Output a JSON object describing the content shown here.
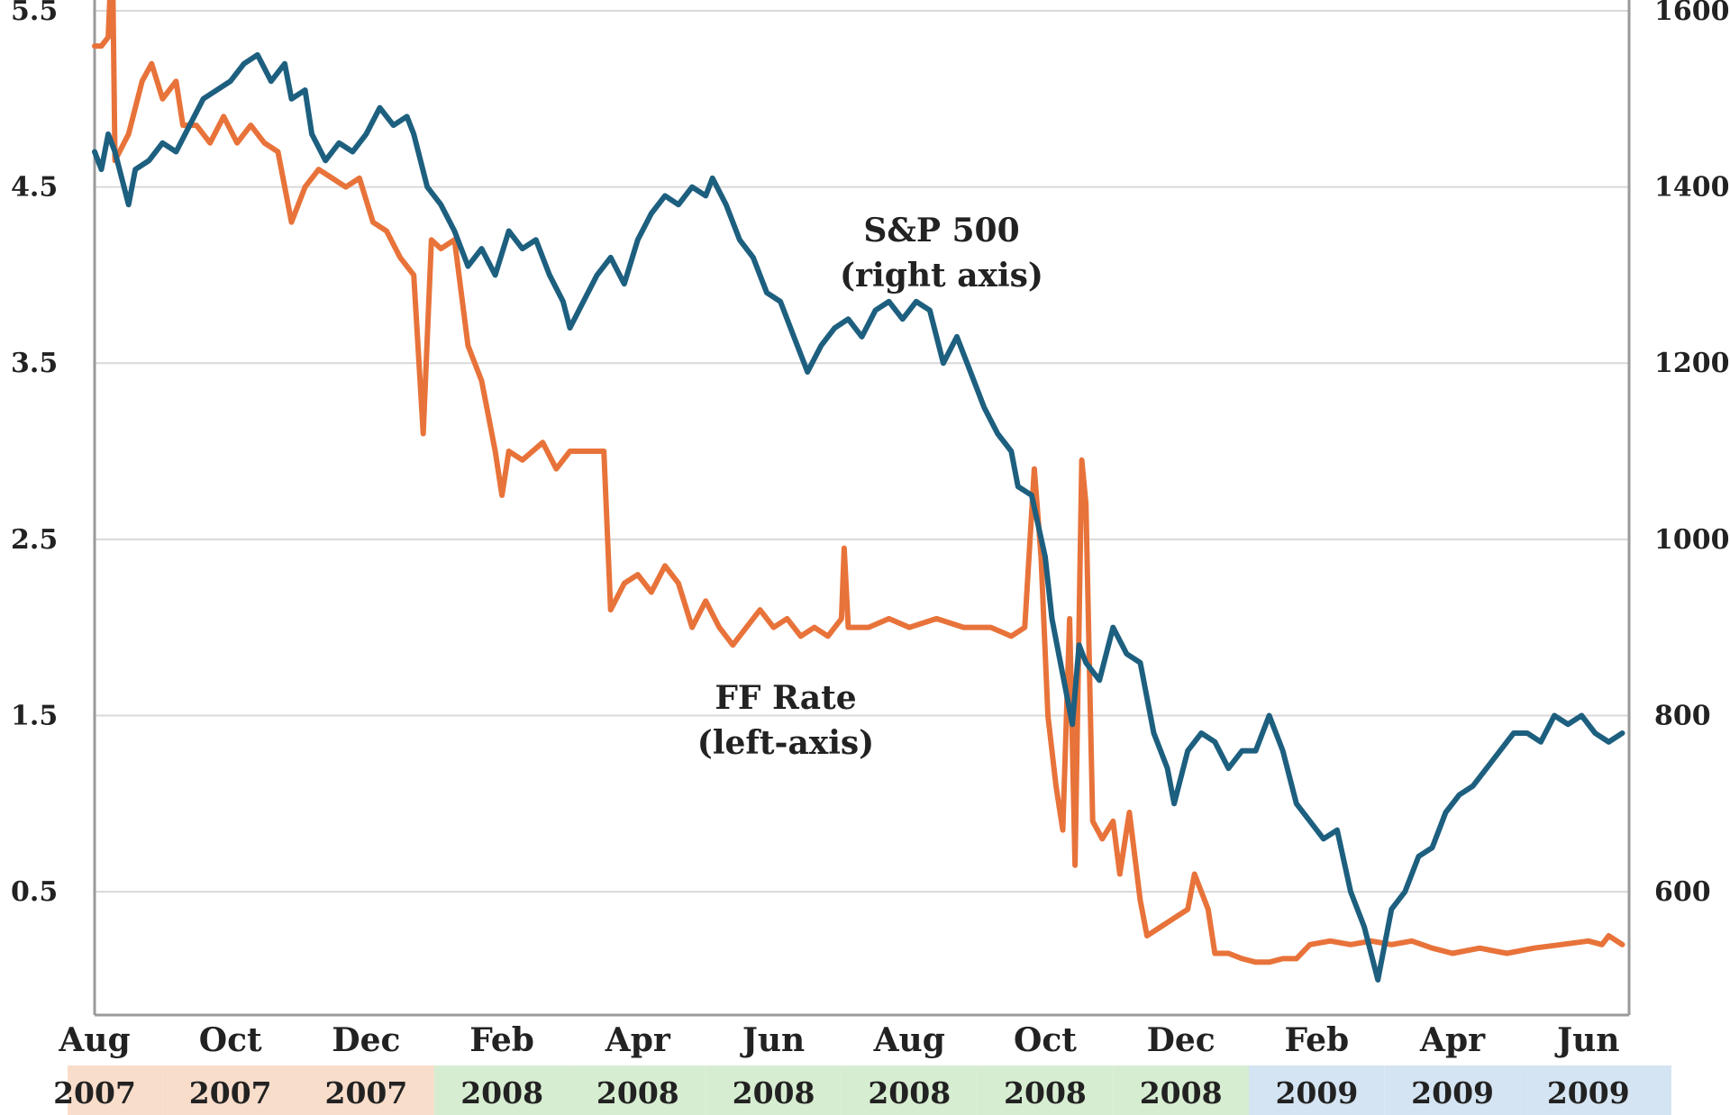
{
  "chart_data": {
    "type": "line",
    "title": "",
    "colors": {
      "ff_rate": "#e8733a",
      "sp500": "#1d5f7f",
      "grid": "#d9d9d9",
      "axis": "#9a9a9a",
      "band_2007": "#f9ddcb",
      "band_2008": "#d7edd1",
      "band_2009": "#d4e4f2"
    },
    "x_axis": {
      "months": [
        "Aug",
        "Oct",
        "Dec",
        "Feb",
        "Apr",
        "Jun",
        "Aug",
        "Oct",
        "Dec",
        "Feb",
        "Apr",
        "Jun"
      ],
      "years": [
        "2007",
        "2007",
        "2007",
        "2008",
        "2008",
        "2008",
        "2008",
        "2008",
        "2008",
        "2009",
        "2009",
        "2009"
      ],
      "range": [
        0,
        11.3
      ]
    },
    "left_axis": {
      "label": "FF Rate",
      "ticks": [
        "5.5",
        "4.5",
        "3.5",
        "2.5",
        "1.5",
        "0.5"
      ],
      "range": [
        -0.2,
        5.5
      ]
    },
    "right_axis": {
      "label": "S&P 500",
      "ticks": [
        "1600",
        "1400",
        "1200",
        "1000",
        "800",
        "600"
      ],
      "range": [
        460,
        1600
      ]
    },
    "annotations": {
      "sp500": [
        "S&P 500",
        "(right axis)"
      ],
      "ff_rate": [
        "FF Rate",
        "(left-axis)"
      ]
    },
    "series": [
      {
        "name": "FF Rate",
        "axis": "left",
        "points": [
          [
            0.0,
            5.3
          ],
          [
            0.05,
            5.3
          ],
          [
            0.1,
            5.35
          ],
          [
            0.13,
            5.9
          ],
          [
            0.15,
            4.65
          ],
          [
            0.25,
            4.8
          ],
          [
            0.35,
            5.1
          ],
          [
            0.42,
            5.2
          ],
          [
            0.5,
            5.0
          ],
          [
            0.6,
            5.1
          ],
          [
            0.65,
            4.85
          ],
          [
            0.75,
            4.85
          ],
          [
            0.85,
            4.75
          ],
          [
            0.95,
            4.9
          ],
          [
            1.05,
            4.75
          ],
          [
            1.15,
            4.85
          ],
          [
            1.25,
            4.75
          ],
          [
            1.35,
            4.7
          ],
          [
            1.45,
            4.3
          ],
          [
            1.55,
            4.5
          ],
          [
            1.65,
            4.6
          ],
          [
            1.75,
            4.55
          ],
          [
            1.85,
            4.5
          ],
          [
            1.95,
            4.55
          ],
          [
            2.05,
            4.3
          ],
          [
            2.15,
            4.25
          ],
          [
            2.25,
            4.1
          ],
          [
            2.35,
            4.0
          ],
          [
            2.42,
            3.1
          ],
          [
            2.48,
            4.2
          ],
          [
            2.55,
            4.15
          ],
          [
            2.65,
            4.2
          ],
          [
            2.75,
            3.6
          ],
          [
            2.85,
            3.4
          ],
          [
            2.9,
            3.2
          ],
          [
            2.95,
            3.0
          ],
          [
            3.0,
            2.75
          ],
          [
            3.05,
            3.0
          ],
          [
            3.15,
            2.95
          ],
          [
            3.3,
            3.05
          ],
          [
            3.4,
            2.9
          ],
          [
            3.5,
            3.0
          ],
          [
            3.6,
            3.0
          ],
          [
            3.75,
            3.0
          ],
          [
            3.8,
            2.1
          ],
          [
            3.9,
            2.25
          ],
          [
            4.0,
            2.3
          ],
          [
            4.1,
            2.2
          ],
          [
            4.2,
            2.35
          ],
          [
            4.3,
            2.25
          ],
          [
            4.4,
            2.0
          ],
          [
            4.5,
            2.15
          ],
          [
            4.6,
            2.0
          ],
          [
            4.7,
            1.9
          ],
          [
            4.8,
            2.0
          ],
          [
            4.9,
            2.1
          ],
          [
            5.0,
            2.0
          ],
          [
            5.1,
            2.05
          ],
          [
            5.2,
            1.95
          ],
          [
            5.3,
            2.0
          ],
          [
            5.4,
            1.95
          ],
          [
            5.5,
            2.05
          ],
          [
            5.52,
            2.45
          ],
          [
            5.55,
            2.0
          ],
          [
            5.7,
            2.0
          ],
          [
            5.85,
            2.05
          ],
          [
            6.0,
            2.0
          ],
          [
            6.2,
            2.05
          ],
          [
            6.4,
            2.0
          ],
          [
            6.6,
            2.0
          ],
          [
            6.75,
            1.95
          ],
          [
            6.85,
            2.0
          ],
          [
            6.92,
            2.9
          ],
          [
            6.97,
            2.4
          ],
          [
            7.02,
            1.5
          ],
          [
            7.08,
            1.1
          ],
          [
            7.13,
            0.85
          ],
          [
            7.18,
            2.05
          ],
          [
            7.22,
            0.65
          ],
          [
            7.27,
            2.95
          ],
          [
            7.3,
            2.7
          ],
          [
            7.35,
            0.9
          ],
          [
            7.42,
            0.8
          ],
          [
            7.5,
            0.9
          ],
          [
            7.55,
            0.6
          ],
          [
            7.62,
            0.95
          ],
          [
            7.7,
            0.45
          ],
          [
            7.75,
            0.25
          ],
          [
            7.85,
            0.3
          ],
          [
            7.95,
            0.35
          ],
          [
            8.05,
            0.4
          ],
          [
            8.1,
            0.6
          ],
          [
            8.2,
            0.4
          ],
          [
            8.25,
            0.15
          ],
          [
            8.35,
            0.15
          ],
          [
            8.45,
            0.12
          ],
          [
            8.55,
            0.1
          ],
          [
            8.65,
            0.1
          ],
          [
            8.75,
            0.12
          ],
          [
            8.85,
            0.12
          ],
          [
            8.95,
            0.2
          ],
          [
            9.1,
            0.22
          ],
          [
            9.25,
            0.2
          ],
          [
            9.4,
            0.22
          ],
          [
            9.55,
            0.2
          ],
          [
            9.7,
            0.22
          ],
          [
            9.85,
            0.18
          ],
          [
            10.0,
            0.15
          ],
          [
            10.2,
            0.18
          ],
          [
            10.4,
            0.15
          ],
          [
            10.6,
            0.18
          ],
          [
            10.8,
            0.2
          ],
          [
            11.0,
            0.22
          ],
          [
            11.1,
            0.2
          ],
          [
            11.15,
            0.25
          ],
          [
            11.25,
            0.2
          ]
        ]
      },
      {
        "name": "S&P 500",
        "axis": "right",
        "points": [
          [
            0.0,
            1440
          ],
          [
            0.05,
            1420
          ],
          [
            0.1,
            1460
          ],
          [
            0.15,
            1440
          ],
          [
            0.25,
            1380
          ],
          [
            0.3,
            1420
          ],
          [
            0.4,
            1430
          ],
          [
            0.5,
            1450
          ],
          [
            0.6,
            1440
          ],
          [
            0.7,
            1470
          ],
          [
            0.8,
            1500
          ],
          [
            0.9,
            1510
          ],
          [
            1.0,
            1520
          ],
          [
            1.1,
            1540
          ],
          [
            1.2,
            1550
          ],
          [
            1.3,
            1520
          ],
          [
            1.4,
            1540
          ],
          [
            1.45,
            1500
          ],
          [
            1.55,
            1510
          ],
          [
            1.6,
            1460
          ],
          [
            1.7,
            1430
          ],
          [
            1.8,
            1450
          ],
          [
            1.9,
            1440
          ],
          [
            2.0,
            1460
          ],
          [
            2.1,
            1490
          ],
          [
            2.2,
            1470
          ],
          [
            2.3,
            1480
          ],
          [
            2.35,
            1460
          ],
          [
            2.45,
            1400
          ],
          [
            2.55,
            1380
          ],
          [
            2.65,
            1350
          ],
          [
            2.75,
            1310
          ],
          [
            2.85,
            1330
          ],
          [
            2.95,
            1300
          ],
          [
            3.05,
            1350
          ],
          [
            3.15,
            1330
          ],
          [
            3.25,
            1340
          ],
          [
            3.35,
            1300
          ],
          [
            3.45,
            1270
          ],
          [
            3.5,
            1240
          ],
          [
            3.6,
            1270
          ],
          [
            3.7,
            1300
          ],
          [
            3.8,
            1320
          ],
          [
            3.9,
            1290
          ],
          [
            4.0,
            1340
          ],
          [
            4.1,
            1370
          ],
          [
            4.2,
            1390
          ],
          [
            4.3,
            1380
          ],
          [
            4.4,
            1400
          ],
          [
            4.5,
            1390
          ],
          [
            4.55,
            1410
          ],
          [
            4.65,
            1380
          ],
          [
            4.75,
            1340
          ],
          [
            4.85,
            1320
          ],
          [
            4.95,
            1280
          ],
          [
            5.05,
            1270
          ],
          [
            5.15,
            1230
          ],
          [
            5.25,
            1190
          ],
          [
            5.35,
            1220
          ],
          [
            5.45,
            1240
          ],
          [
            5.55,
            1250
          ],
          [
            5.65,
            1230
          ],
          [
            5.75,
            1260
          ],
          [
            5.85,
            1270
          ],
          [
            5.95,
            1250
          ],
          [
            6.05,
            1270
          ],
          [
            6.15,
            1260
          ],
          [
            6.25,
            1200
          ],
          [
            6.35,
            1230
          ],
          [
            6.45,
            1190
          ],
          [
            6.55,
            1150
          ],
          [
            6.65,
            1120
          ],
          [
            6.75,
            1100
          ],
          [
            6.8,
            1060
          ],
          [
            6.9,
            1050
          ],
          [
            7.0,
            980
          ],
          [
            7.05,
            910
          ],
          [
            7.1,
            870
          ],
          [
            7.15,
            830
          ],
          [
            7.2,
            790
          ],
          [
            7.25,
            880
          ],
          [
            7.3,
            860
          ],
          [
            7.4,
            840
          ],
          [
            7.5,
            900
          ],
          [
            7.6,
            870
          ],
          [
            7.7,
            860
          ],
          [
            7.8,
            780
          ],
          [
            7.9,
            740
          ],
          [
            7.95,
            700
          ],
          [
            8.05,
            760
          ],
          [
            8.15,
            780
          ],
          [
            8.25,
            770
          ],
          [
            8.35,
            740
          ],
          [
            8.45,
            760
          ],
          [
            8.55,
            760
          ],
          [
            8.65,
            800
          ],
          [
            8.75,
            760
          ],
          [
            8.85,
            700
          ],
          [
            8.95,
            680
          ],
          [
            9.05,
            660
          ],
          [
            9.15,
            670
          ],
          [
            9.25,
            600
          ],
          [
            9.35,
            560
          ],
          [
            9.45,
            500
          ],
          [
            9.55,
            580
          ],
          [
            9.65,
            600
          ],
          [
            9.75,
            640
          ],
          [
            9.85,
            650
          ],
          [
            9.95,
            690
          ],
          [
            10.05,
            710
          ],
          [
            10.15,
            720
          ],
          [
            10.25,
            740
          ],
          [
            10.35,
            760
          ],
          [
            10.45,
            780
          ],
          [
            10.55,
            780
          ],
          [
            10.65,
            770
          ],
          [
            10.75,
            800
          ],
          [
            10.85,
            790
          ],
          [
            10.95,
            800
          ],
          [
            11.05,
            780
          ],
          [
            11.15,
            770
          ],
          [
            11.25,
            780
          ]
        ]
      }
    ]
  }
}
